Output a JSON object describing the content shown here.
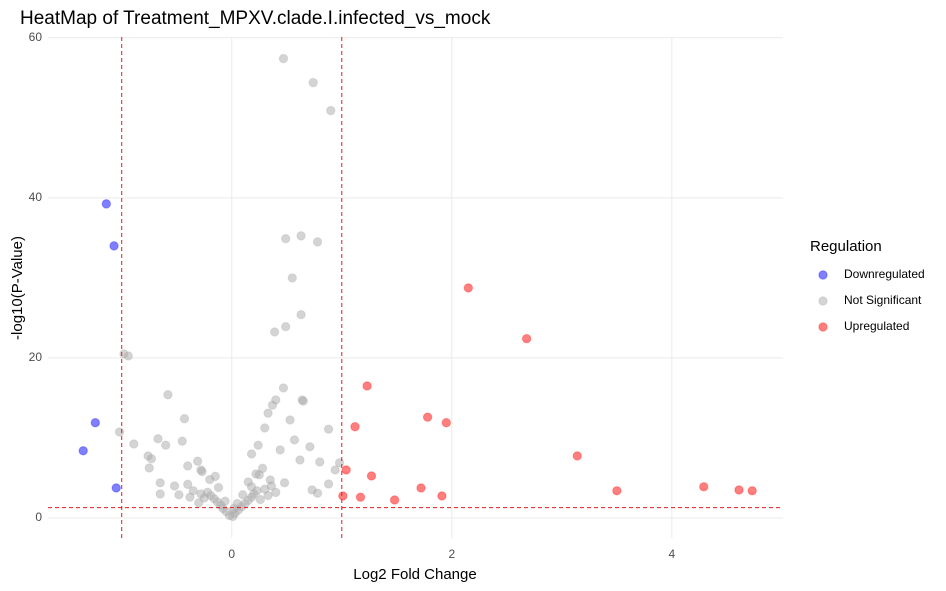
{
  "chart_data": {
    "type": "scatter",
    "title": "HeatMap of Treatment_MPXV.clade.I.infected_vs_mock",
    "x_label": "Log2 Fold Change",
    "y_label": "-log10(P-Value)",
    "legend_title": "Regulation",
    "legend_position": "right",
    "grid": true,
    "alpha": 0.5,
    "xlim": [
      -1.67,
      5.01
    ],
    "xticks": [
      0,
      2,
      4
    ],
    "ylim": [
      -2.5,
      60.1
    ],
    "yticks": [
      0,
      20,
      40,
      60
    ],
    "vlines": [
      -1,
      1
    ],
    "hline": 1.3,
    "threshold_color": "#e41a1c",
    "series": [
      {
        "name": "Downregulated",
        "color": "#0000ff",
        "x": [
          -1.14,
          -1.07,
          -1.24,
          -1.35,
          -1.05
        ],
        "y": [
          39.25,
          34.0,
          11.9,
          8.4,
          3.75
        ]
      },
      {
        "name": "Not Significant",
        "color": "#a9a9a9",
        "x": [
          0.47,
          0.74,
          0.9,
          0.49,
          0.63,
          0.78,
          0.55,
          0.63,
          0.49,
          0.39,
          -0.98,
          -0.94,
          -0.58,
          0.47,
          0.4,
          0.37,
          0.64,
          0.65,
          -0.43,
          0.33,
          -1.02,
          0.53,
          0.88,
          0.3,
          -0.89,
          -0.67,
          -0.45,
          -0.6,
          -0.76,
          -0.73,
          -0.75,
          0.98,
          0.24,
          0.57,
          0.71,
          0.44,
          0.18,
          0.62,
          0.8,
          -0.4,
          -0.31,
          -0.28,
          -0.65,
          -0.52,
          -0.65,
          -0.48,
          0.73,
          0.78,
          0.88,
          0.94,
          0.25,
          0.35,
          0.48,
          -0.02,
          0.01,
          0.03,
          -0.05,
          0.06,
          -0.08,
          0.09,
          -0.1,
          0.12,
          -0.13,
          0.15,
          -0.16,
          0.18,
          -0.19,
          0.2,
          -0.22,
          0.23,
          -0.25,
          0.26,
          -0.28,
          0.3,
          -0.3,
          0.33,
          -0.35,
          0.36,
          -0.38,
          0.4,
          -0.4,
          0.1,
          -0.12,
          0.15,
          -0.2,
          0.05,
          -0.06,
          0.22,
          -0.15,
          0.28,
          -0.27,
          0.18,
          0.02
        ],
        "y": [
          57.4,
          54.4,
          50.9,
          34.9,
          35.25,
          34.5,
          30.0,
          25.4,
          23.9,
          23.25,
          20.5,
          20.25,
          15.4,
          16.25,
          14.75,
          14.1,
          14.75,
          14.6,
          12.4,
          13.1,
          10.75,
          12.25,
          11.1,
          11.25,
          9.25,
          9.9,
          9.6,
          9.1,
          7.75,
          7.4,
          6.25,
          6.9,
          9.1,
          9.75,
          8.9,
          8.5,
          8.0,
          7.25,
          7.0,
          6.5,
          7.1,
          6.0,
          4.4,
          4.0,
          3.0,
          2.9,
          3.5,
          3.1,
          4.25,
          6.0,
          5.4,
          4.75,
          4.4,
          0.3,
          0.2,
          0.6,
          0.8,
          1.0,
          1.2,
          1.4,
          1.6,
          1.8,
          2.0,
          2.2,
          2.4,
          2.6,
          2.8,
          3.0,
          3.2,
          3.4,
          2.5,
          2.3,
          3.0,
          3.6,
          1.9,
          2.8,
          3.4,
          4.0,
          2.6,
          3.2,
          4.2,
          2.9,
          3.8,
          4.5,
          4.8,
          1.8,
          2.1,
          5.5,
          5.2,
          6.2,
          5.8,
          3.9,
          1.2
        ]
      },
      {
        "name": "Upregulated",
        "color": "#ff0000",
        "x": [
          2.15,
          2.68,
          1.23,
          1.78,
          1.95,
          1.12,
          3.14,
          1.04,
          1.27,
          1.72,
          3.5,
          4.29,
          4.61,
          4.73,
          1.01,
          1.17,
          1.91,
          1.48
        ],
        "y": [
          28.75,
          22.4,
          16.5,
          12.6,
          11.9,
          11.4,
          7.75,
          6.0,
          5.25,
          3.75,
          3.4,
          3.9,
          3.5,
          3.4,
          2.75,
          2.6,
          2.75,
          2.25
        ]
      }
    ]
  }
}
